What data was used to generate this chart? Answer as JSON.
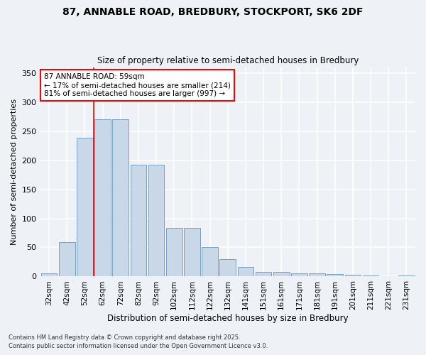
{
  "title_line1": "87, ANNABLE ROAD, BREDBURY, STOCKPORT, SK6 2DF",
  "title_line2": "Size of property relative to semi-detached houses in Bredbury",
  "xlabel": "Distribution of semi-detached houses by size in Bredbury",
  "ylabel": "Number of semi-detached properties",
  "categories": [
    "32sqm",
    "42sqm",
    "52sqm",
    "62sqm",
    "72sqm",
    "82sqm",
    "92sqm",
    "102sqm",
    "112sqm",
    "122sqm",
    "132sqm",
    "141sqm",
    "151sqm",
    "161sqm",
    "171sqm",
    "181sqm",
    "191sqm",
    "201sqm",
    "211sqm",
    "221sqm",
    "231sqm"
  ],
  "values": [
    5,
    59,
    238,
    270,
    270,
    192,
    192,
    84,
    84,
    51,
    30,
    17,
    8,
    8,
    5,
    5,
    4,
    3,
    2,
    1,
    2
  ],
  "bar_color": "#c8d8e8",
  "bar_edge_color": "#7aA0c4",
  "annotation_box_text": "87 ANNABLE ROAD: 59sqm\n← 17% of semi-detached houses are smaller (214)\n81% of semi-detached houses are larger (997) →",
  "annotation_box_color": "white",
  "annotation_box_edge_color": "red",
  "vline_x": 2.5,
  "vline_color": "red",
  "ylim": [
    0,
    360
  ],
  "yticks": [
    0,
    50,
    100,
    150,
    200,
    250,
    300,
    350
  ],
  "footer_line1": "Contains HM Land Registry data © Crown copyright and database right 2025.",
  "footer_line2": "Contains public sector information licensed under the Open Government Licence v3.0.",
  "background_color": "#eef2f7",
  "grid_color": "white"
}
